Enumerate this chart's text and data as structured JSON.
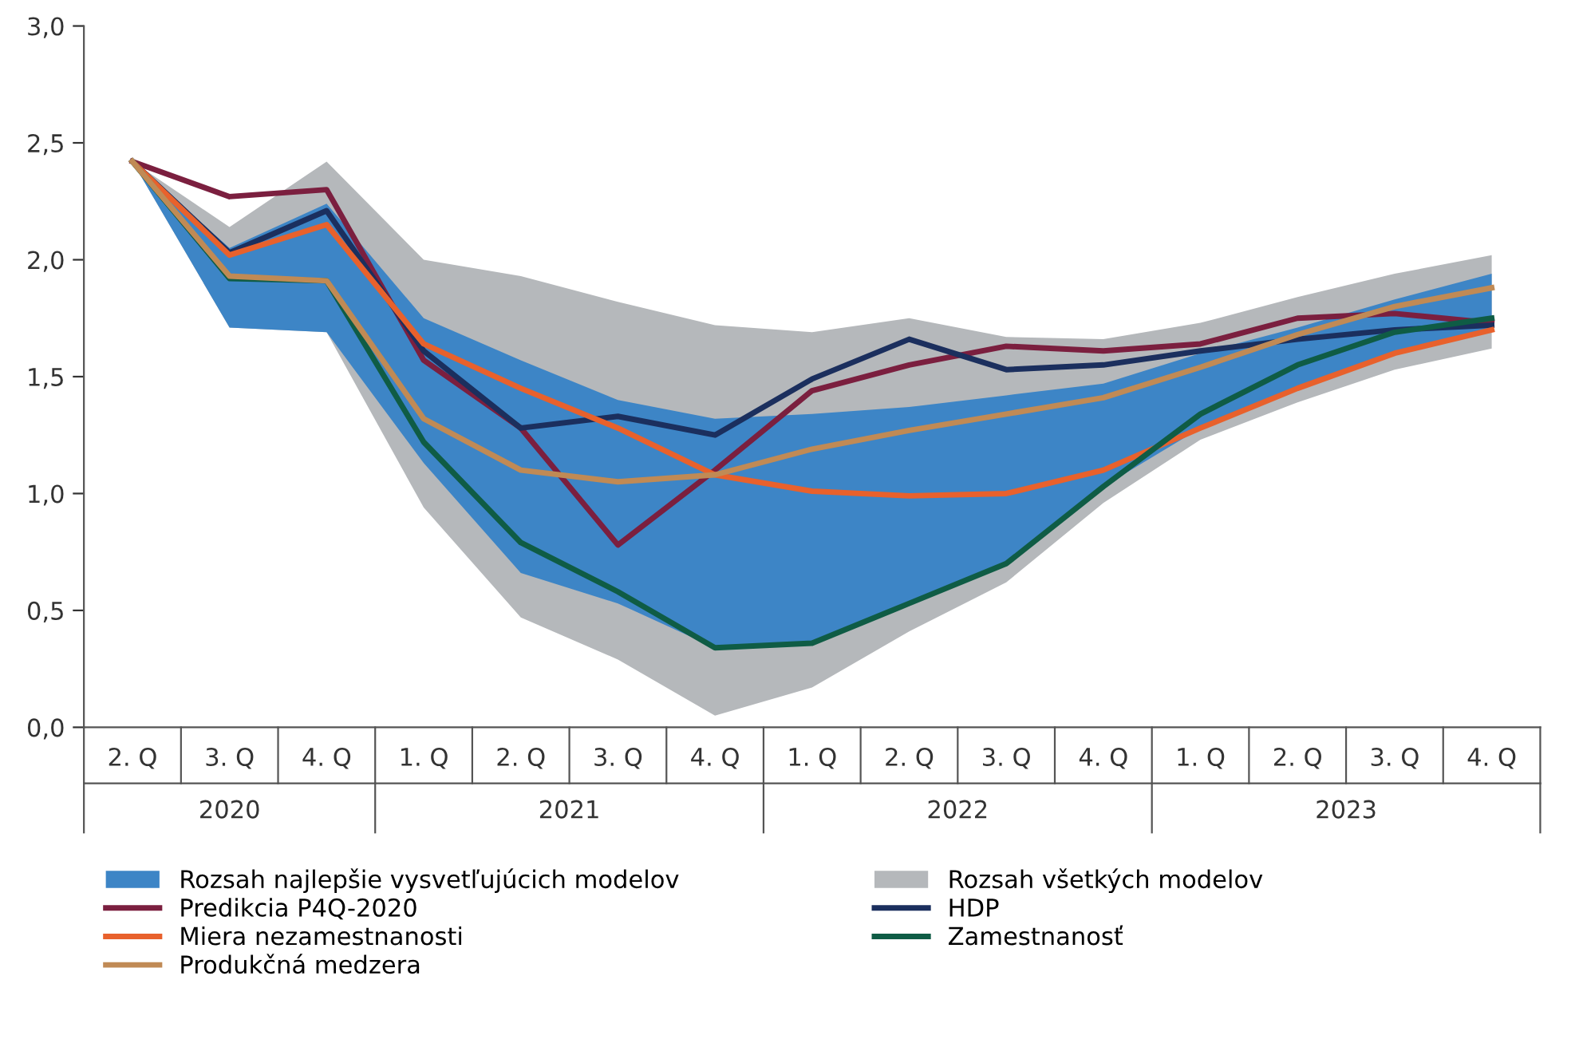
{
  "chart_data": {
    "type": "line",
    "categories": [
      "2. Q",
      "3. Q",
      "4. Q",
      "1. Q",
      "2. Q",
      "3. Q",
      "4. Q",
      "1. Q",
      "2. Q",
      "3. Q",
      "4. Q",
      "1. Q",
      "2. Q",
      "3. Q",
      "4. Q"
    ],
    "annotations": [
      "2020",
      "2021",
      "2022",
      "2023"
    ],
    "ylim": [
      0,
      3
    ],
    "yticks": [
      {
        "value": 0,
        "label": "0,0"
      },
      {
        "value": 0.5,
        "label": "0,5"
      },
      {
        "value": 1,
        "label": "1,0"
      },
      {
        "value": 1.5,
        "label": "1,5"
      },
      {
        "value": 2,
        "label": "2,0"
      },
      {
        "value": 2.5,
        "label": "2,5"
      },
      {
        "value": 3,
        "label": "3,0"
      }
    ],
    "grid": false,
    "legend": "bottom",
    "marker": "none",
    "line_style": "solid",
    "series": [
      {
        "name": "Rozsah najlepšie vysvetľujúcich modelov",
        "type": "area",
        "color": "#3d85c6",
        "values": [
          null,
          null,
          null,
          null,
          null,
          null,
          null,
          null,
          null,
          null,
          null,
          null,
          null,
          null,
          null
        ],
        "lower": [
          2.42,
          1.71,
          1.69,
          1.13,
          0.66,
          0.53,
          0.34,
          0.36,
          0.53,
          0.7,
          1.03,
          1.28,
          1.45,
          1.6,
          1.7
        ],
        "upper": [
          2.42,
          2.05,
          2.24,
          1.75,
          1.57,
          1.4,
          1.32,
          1.34,
          1.37,
          1.42,
          1.47,
          1.6,
          1.71,
          1.83,
          1.94
        ]
      },
      {
        "name": "Rozsah všetkých modelov",
        "type": "area",
        "color": "#b5b8bb",
        "values": [
          null,
          null,
          null,
          null,
          null,
          null,
          null,
          null,
          null,
          null,
          null,
          null,
          null,
          null,
          null
        ],
        "lower": [
          2.42,
          1.71,
          1.69,
          0.94,
          0.47,
          0.29,
          0.05,
          0.17,
          0.41,
          0.62,
          0.96,
          1.23,
          1.39,
          1.53,
          1.62
        ],
        "upper": [
          2.42,
          2.14,
          2.42,
          2.0,
          1.93,
          1.82,
          1.72,
          1.69,
          1.75,
          1.67,
          1.66,
          1.73,
          1.84,
          1.94,
          2.02
        ]
      },
      {
        "name": "Predikcia P4Q-2020",
        "color": "#7b1f3f",
        "values": [
          2.42,
          2.27,
          2.3,
          1.57,
          1.28,
          0.78,
          1.1,
          1.44,
          1.55,
          1.63,
          1.61,
          1.64,
          1.75,
          1.77,
          1.73
        ]
      },
      {
        "name": "HDP",
        "color": "#1b2f5e",
        "values": [
          2.42,
          2.03,
          2.21,
          1.61,
          1.28,
          1.33,
          1.25,
          1.49,
          1.66,
          1.53,
          1.55,
          1.61,
          1.66,
          1.7,
          1.72
        ]
      },
      {
        "name": "Miera nezamestnanosti",
        "color": "#e8612c",
        "values": [
          2.42,
          2.02,
          2.15,
          1.64,
          1.45,
          1.28,
          1.08,
          1.01,
          0.99,
          1.0,
          1.1,
          1.28,
          1.45,
          1.6,
          1.7
        ]
      },
      {
        "name": "Zamestnanosť",
        "color": "#0f5c45",
        "values": [
          2.42,
          1.92,
          1.91,
          1.22,
          0.79,
          0.58,
          0.34,
          0.36,
          0.53,
          0.7,
          1.03,
          1.34,
          1.55,
          1.69,
          1.75
        ]
      },
      {
        "name": "Produkčná medzera",
        "color": "#c08a55",
        "values": [
          2.42,
          1.93,
          1.91,
          1.32,
          1.1,
          1.05,
          1.08,
          1.19,
          1.27,
          1.34,
          1.41,
          1.54,
          1.68,
          1.8,
          1.88
        ]
      }
    ]
  }
}
